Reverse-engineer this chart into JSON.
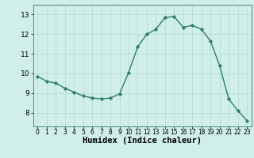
{
  "x": [
    0,
    1,
    2,
    3,
    4,
    5,
    6,
    7,
    8,
    9,
    10,
    11,
    12,
    13,
    14,
    15,
    16,
    17,
    18,
    19,
    20,
    21,
    22,
    23
  ],
  "y": [
    9.85,
    9.6,
    9.5,
    9.25,
    9.05,
    8.85,
    8.75,
    8.7,
    8.75,
    8.95,
    10.05,
    11.35,
    12.0,
    12.25,
    12.85,
    12.9,
    12.35,
    12.45,
    12.25,
    11.65,
    10.4,
    8.7,
    8.1,
    7.6
  ],
  "line_color": "#2e7d6e",
  "marker": "D",
  "marker_size": 2.2,
  "line_width": 1.0,
  "bg_color": "#d0eeea",
  "grid_color": "#b8ddd8",
  "xlabel": "Humidex (Indice chaleur)",
  "xlabel_fontsize": 7.5,
  "ytick_fontsize": 6.5,
  "xtick_fontsize": 5.5,
  "yticks": [
    8,
    9,
    10,
    11,
    12,
    13
  ],
  "xticks": [
    0,
    1,
    2,
    3,
    4,
    5,
    6,
    7,
    8,
    9,
    10,
    11,
    12,
    13,
    14,
    15,
    16,
    17,
    18,
    19,
    20,
    21,
    22,
    23
  ],
  "ylim": [
    7.3,
    13.5
  ],
  "xlim": [
    -0.5,
    23.5
  ]
}
